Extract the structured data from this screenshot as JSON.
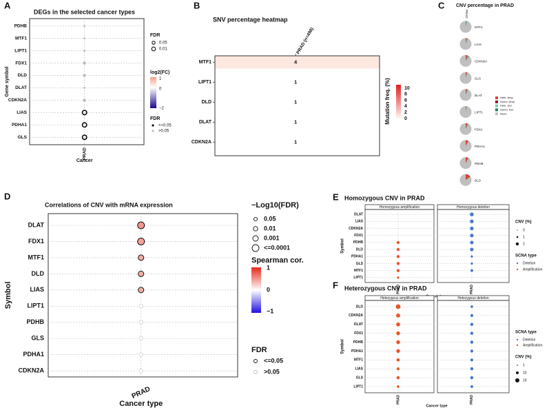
{
  "figure": {
    "panel_letters": [
      "A",
      "B",
      "C",
      "D",
      "E",
      "F"
    ]
  },
  "colors": {
    "frame": "#333333",
    "grid": "#bbbbbb",
    "deletion_blue": "#4a78c9",
    "amplification_red": "#e8572a",
    "heat_low": "#fde8e0",
    "heat_high": "#e0201c",
    "fc_high": "#f4a089",
    "fc_low": "#1a0a8c",
    "sp_high": "#e82a1a",
    "sp_low": "#2010e0"
  },
  "chart_data": [
    {
      "id": "A",
      "type": "scatter",
      "title": "DEGs in the selected cancer types",
      "xlabel": "Cancer",
      "ylabel": "Gene symbol",
      "categories_x": [
        "PRAD"
      ],
      "genes": [
        "PDHB",
        "MTF1",
        "LIPT1",
        "FDX1",
        "DLD",
        "DLAT",
        "CDKN2A",
        "LIAS",
        "PDHA1",
        "GLS"
      ],
      "points": [
        {
          "gene": "PDHB",
          "fdr_size": "small",
          "significant": false,
          "log2fc": 0
        },
        {
          "gene": "MTF1",
          "fdr_size": "small",
          "significant": false,
          "log2fc": 0
        },
        {
          "gene": "LIPT1",
          "fdr_size": "small",
          "significant": false,
          "log2fc": 0
        },
        {
          "gene": "FDX1",
          "fdr_size": "medium",
          "significant": false,
          "log2fc": 0
        },
        {
          "gene": "DLD",
          "fdr_size": "medium",
          "significant": false,
          "log2fc": 0
        },
        {
          "gene": "DLAT",
          "fdr_size": "small",
          "significant": false,
          "log2fc": 0
        },
        {
          "gene": "CDKN2A",
          "fdr_size": "medium",
          "significant": false,
          "log2fc": 0
        },
        {
          "gene": "LIAS",
          "fdr_size": "large",
          "significant": true,
          "log2fc": 0
        },
        {
          "gene": "PDHA1",
          "fdr_size": "large",
          "significant": true,
          "log2fc": 0
        },
        {
          "gene": "GLS",
          "fdr_size": "large",
          "significant": true,
          "log2fc": 0
        }
      ],
      "legend": {
        "fdr_title": "FDR",
        "fdr_items": [
          "0.05",
          "0.01"
        ],
        "fc_title": "log2(FC)",
        "fc_ticks": [
          "1",
          "0",
          "−2"
        ],
        "sig_title": "FDR",
        "sig_items": [
          "<=0.05",
          ">0.05"
        ]
      }
    },
    {
      "id": "B",
      "type": "heatmap",
      "title": "SNV percentage heatmap",
      "column": "PRAD (n=498)",
      "rows": [
        "MTF1",
        "LIPT1",
        "DLD",
        "DLAT",
        "CDKN2A"
      ],
      "values": [
        4,
        1,
        1,
        1,
        1
      ],
      "legend": {
        "title": "Mutation freq. (%)",
        "ticks": [
          "10",
          "8",
          "6",
          "4",
          "2",
          "0"
        ]
      }
    },
    {
      "id": "C",
      "type": "pie",
      "title": "CNV percentage in PRAD",
      "column": "PRAD",
      "genes": [
        "MTF1",
        "LIAS",
        "CDKN2A",
        "GLS",
        "DLAT",
        "LIPT1",
        "FDX1",
        "PDHA1",
        "PDHB",
        "DLD"
      ],
      "slices": [
        {
          "gene": "MTF1",
          "hete_amp": 0.02,
          "homo_amp": 0.0,
          "hete_del": 0.04,
          "homo_del": 0.0
        },
        {
          "gene": "LIAS",
          "hete_amp": 0.03,
          "homo_amp": 0.0,
          "hete_del": 0.02,
          "homo_del": 0.01
        },
        {
          "gene": "CDKN2A",
          "hete_amp": 0.05,
          "homo_amp": 0.0,
          "hete_del": 0.02,
          "homo_del": 0.02
        },
        {
          "gene": "GLS",
          "hete_amp": 0.04,
          "homo_amp": 0.0,
          "hete_del": 0.02,
          "homo_del": 0.0
        },
        {
          "gene": "DLAT",
          "hete_amp": 0.04,
          "homo_amp": 0.0,
          "hete_del": 0.02,
          "homo_del": 0.01
        },
        {
          "gene": "LIPT1",
          "hete_amp": 0.02,
          "homo_amp": 0.0,
          "hete_del": 0.02,
          "homo_del": 0.0
        },
        {
          "gene": "FDX1",
          "hete_amp": 0.05,
          "homo_amp": 0.0,
          "hete_del": 0.02,
          "homo_del": 0.01
        },
        {
          "gene": "PDHA1",
          "hete_amp": 0.08,
          "homo_amp": 0.0,
          "hete_del": 0.01,
          "homo_del": 0.0
        },
        {
          "gene": "PDHB",
          "hete_amp": 0.08,
          "homo_amp": 0.0,
          "hete_del": 0.02,
          "homo_del": 0.0
        },
        {
          "gene": "DLD",
          "hete_amp": 0.15,
          "homo_amp": 0.0,
          "hete_del": 0.02,
          "homo_del": 0.0
        }
      ],
      "legend": {
        "items": [
          "Hete. Amp.",
          "Homo. Amp.",
          "Hete. Del.",
          "Homo. Del.",
          "None"
        ],
        "colors": [
          "#e0413a",
          "#8b1a1a",
          "#6dcfb0",
          "#1e7f5e",
          "#bfbfbf"
        ]
      }
    },
    {
      "id": "D",
      "type": "scatter",
      "title": "Correlations of CNV with mRNA expression",
      "xlabel": "Cancer type",
      "ylabel": "Symbol",
      "categories_x": [
        "PRAD"
      ],
      "genes": [
        "DLAT",
        "FDX1",
        "MTF1",
        "DLD",
        "LIAS",
        "LIPT1",
        "PDHB",
        "GLS",
        "PDHA1",
        "CDKN2A"
      ],
      "points": [
        {
          "gene": "DLAT",
          "neglog10fdr_level": 4,
          "spearman": 0.45,
          "significant": true
        },
        {
          "gene": "FDX1",
          "neglog10fdr_level": 4,
          "spearman": 0.4,
          "significant": true
        },
        {
          "gene": "MTF1",
          "neglog10fdr_level": 3,
          "spearman": 0.35,
          "significant": true
        },
        {
          "gene": "DLD",
          "neglog10fdr_level": 3,
          "spearman": 0.35,
          "significant": true
        },
        {
          "gene": "LIAS",
          "neglog10fdr_level": 3,
          "spearman": 0.35,
          "significant": true
        },
        {
          "gene": "LIPT1",
          "neglog10fdr_level": 1,
          "spearman": 0.0,
          "significant": false
        },
        {
          "gene": "PDHB",
          "neglog10fdr_level": 1,
          "spearman": 0.0,
          "significant": false
        },
        {
          "gene": "GLS",
          "neglog10fdr_level": 1,
          "spearman": 0.0,
          "significant": false
        },
        {
          "gene": "PDHA1",
          "neglog10fdr_level": 1,
          "spearman": 0.0,
          "significant": false
        },
        {
          "gene": "CDKN2A",
          "neglog10fdr_level": 1,
          "spearman": 0.0,
          "significant": false
        }
      ],
      "legend": {
        "fdr_title": "−Log10(FDR)",
        "fdr_items": [
          "0.05",
          "0.01",
          "0.001",
          "<=0.0001"
        ],
        "sp_title": "Spearman cor.",
        "sp_ticks": [
          "1",
          "0",
          "−1"
        ],
        "sig_title": "FDR",
        "sig_items": [
          "<=0.05",
          ">0.05"
        ]
      }
    },
    {
      "id": "E",
      "type": "scatter",
      "title": "Homozygous CNV in PRAD",
      "xlabel": "Cancer type",
      "ylabel": "Symbol",
      "facets": [
        "Homozygous amplification",
        "Homozygous deletion"
      ],
      "x_label": "PRAD",
      "genes": [
        "DLAT",
        "LIAS",
        "CDKN2A",
        "FDX1",
        "PDHB",
        "DLD",
        "PDHA1",
        "GLS",
        "MTF1",
        "LIPT1"
      ],
      "amplification": [
        0,
        0,
        0,
        0,
        0.8,
        0.8,
        0.8,
        0.8,
        0.8,
        0.3
      ],
      "deletion": [
        1.6,
        1.5,
        1.5,
        1.4,
        1.3,
        1.3,
        0.3,
        0.3,
        0.6,
        0.0
      ],
      "legend": {
        "cnv_title": "CNV (%)",
        "cnv_items": [
          "0",
          "1",
          "2"
        ],
        "type_title": "SCNA type",
        "type_items": [
          "Deletion",
          "Amplification"
        ]
      }
    },
    {
      "id": "F",
      "type": "scatter",
      "title": "Heterozygous CNV in PRAD",
      "xlabel": "Cancer type",
      "ylabel": "Symbol",
      "facets": [
        "Hetezygous amplification",
        "Hetezygous deletion"
      ],
      "x_label": "PRAD",
      "genes": [
        "DLD",
        "CDKN2A",
        "DLAT",
        "FDX1",
        "PDHB",
        "PDHA1",
        "MTF1",
        "LIAS",
        "GLS",
        "LIPT1"
      ],
      "amplification": [
        19,
        13,
        12,
        11,
        11,
        10,
        7,
        5,
        6,
        3
      ],
      "deletion": [
        3,
        5,
        6,
        6,
        6,
        5,
        5,
        6,
        6,
        4
      ],
      "legend": {
        "type_title": "SCNA type",
        "type_items": [
          "Deletion",
          "Amplification"
        ],
        "cnv_title": "CNV (%)",
        "cnv_items": [
          "1",
          "10",
          "19"
        ]
      }
    }
  ]
}
